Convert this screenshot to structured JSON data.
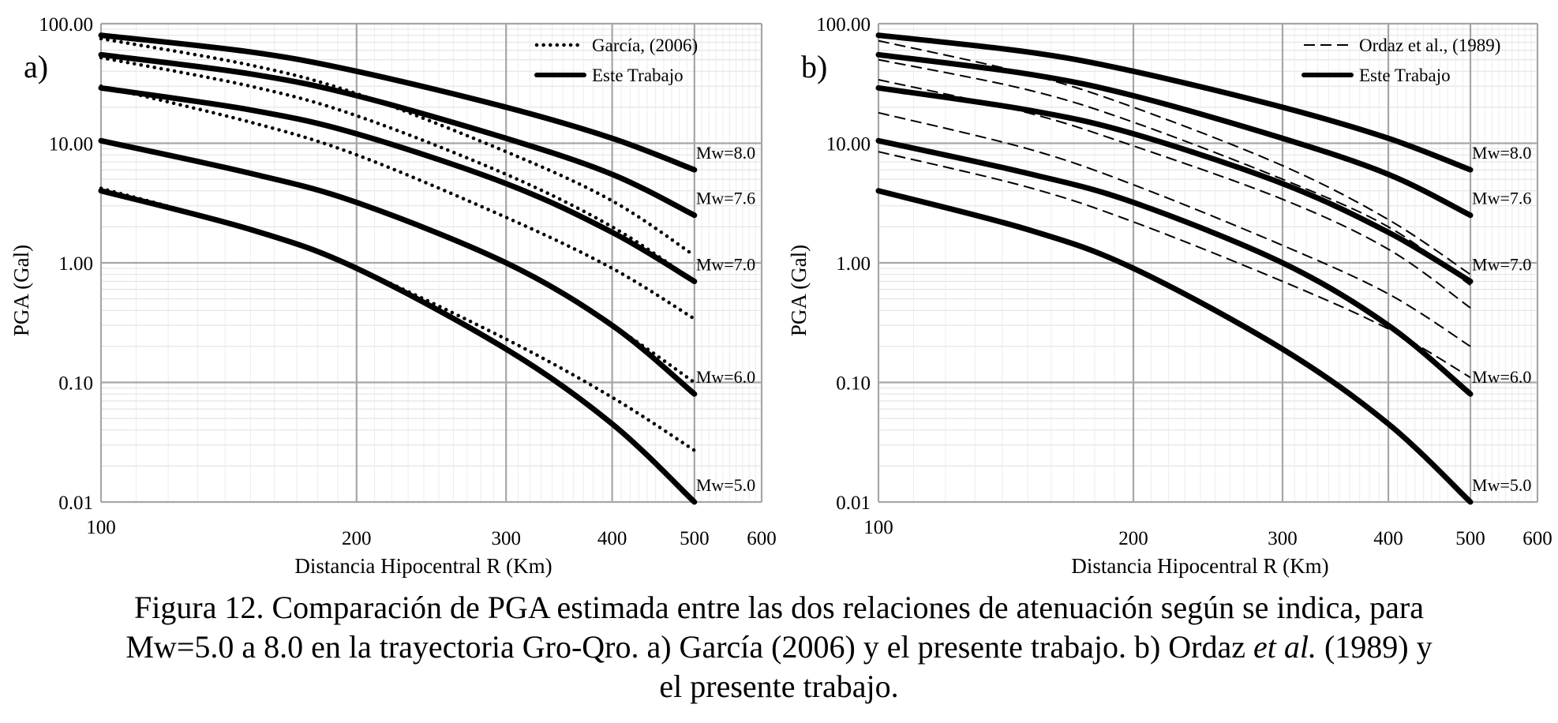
{
  "chart_data": [
    {
      "panel_label": "a)",
      "type": "line",
      "x_scale": "log",
      "y_scale": "log",
      "xlim": [
        100,
        600
      ],
      "ylim": [
        0.01,
        100
      ],
      "x_ticks": [
        100,
        200,
        300,
        400,
        500,
        600
      ],
      "x_tick_labels": [
        "100",
        "200",
        "300",
        "400",
        "500",
        "600"
      ],
      "y_ticks": [
        0.01,
        0.1,
        1,
        10,
        100
      ],
      "y_tick_labels": [
        "0.01",
        "0.10",
        "1.00",
        "10.00",
        "100.00"
      ],
      "xlabel": "Distancia Hipocentral R (Km)",
      "ylabel": "PGA (Gal)",
      "legend": {
        "position": "top-right",
        "entries": [
          {
            "label": "García, (2006)",
            "style": "dotted"
          },
          {
            "label": "Este Trabajo",
            "style": "solid-thick"
          }
        ]
      },
      "annotations": [
        "Mw=8.0",
        "Mw=7.6",
        "Mw=7.0",
        "Mw=6.0",
        "Mw=5.0"
      ],
      "series": [
        {
          "name": "Este Trabajo Mw=8.0",
          "style": "solid-thick",
          "x": [
            100,
            150,
            200,
            300,
            400,
            500
          ],
          "y": [
            80,
            58,
            40,
            20,
            11,
            6
          ]
        },
        {
          "name": "Este Trabajo Mw=7.6",
          "style": "solid-thick",
          "x": [
            100,
            150,
            200,
            300,
            400,
            500
          ],
          "y": [
            55,
            38,
            25,
            11,
            5.5,
            2.5
          ]
        },
        {
          "name": "Este Trabajo Mw=7.0",
          "style": "solid-thick",
          "x": [
            100,
            150,
            200,
            300,
            400,
            500
          ],
          "y": [
            29,
            19,
            12,
            4.6,
            1.8,
            0.7
          ]
        },
        {
          "name": "Este Trabajo Mw=6.0",
          "style": "solid-thick",
          "x": [
            100,
            150,
            200,
            300,
            400,
            500
          ],
          "y": [
            10.5,
            5.6,
            3.2,
            1.0,
            0.3,
            0.08
          ]
        },
        {
          "name": "Este Trabajo Mw=5.0",
          "style": "solid-thick",
          "x": [
            100,
            150,
            200,
            300,
            400,
            500
          ],
          "y": [
            4,
            1.9,
            0.9,
            0.19,
            0.045,
            0.01
          ]
        },
        {
          "name": "García (2006) Mw=8.0",
          "style": "dotted",
          "x": [
            100,
            150,
            200,
            300,
            400,
            500
          ],
          "y": [
            75,
            45,
            26,
            8.5,
            3.3,
            1.15
          ]
        },
        {
          "name": "García (2006) Mw=7.6",
          "style": "dotted",
          "x": [
            100,
            150,
            200,
            300,
            400,
            500
          ],
          "y": [
            52,
            30,
            17,
            5.5,
            2.0,
            0.7
          ]
        },
        {
          "name": "García (2006) Mw=7.0",
          "style": "dotted",
          "x": [
            100,
            150,
            200,
            300,
            400,
            500
          ],
          "y": [
            30,
            15,
            8.0,
            2.4,
            0.9,
            0.34
          ]
        },
        {
          "name": "García (2006) Mw=6.0",
          "style": "dotted",
          "x": [
            100,
            150,
            200,
            300,
            400,
            500
          ],
          "y": [
            10.5,
            5.6,
            3.2,
            1.0,
            0.3,
            0.1
          ]
        },
        {
          "name": "García (2006) Mw=5.0",
          "style": "dotted",
          "x": [
            100,
            150,
            200,
            300,
            400,
            500
          ],
          "y": [
            4.2,
            1.9,
            0.9,
            0.23,
            0.075,
            0.027
          ]
        }
      ]
    },
    {
      "panel_label": "b)",
      "type": "line",
      "x_scale": "log",
      "y_scale": "log",
      "xlim": [
        100,
        600
      ],
      "ylim": [
        0.01,
        100
      ],
      "x_ticks": [
        100,
        200,
        300,
        400,
        500,
        600
      ],
      "x_tick_labels": [
        "100",
        "200",
        "300",
        "400",
        "500",
        "600"
      ],
      "y_ticks": [
        0.01,
        0.1,
        1,
        10,
        100
      ],
      "y_tick_labels": [
        "0.01",
        "0.10",
        "1.00",
        "10.00",
        "100.00"
      ],
      "xlabel": "Distancia Hipocentral R (Km)",
      "ylabel": "PGA (Gal)",
      "legend": {
        "position": "top-right",
        "entries": [
          {
            "label": "Ordaz et al., (1989)",
            "style": "dashed"
          },
          {
            "label": "Este Trabajo",
            "style": "solid-thick"
          }
        ]
      },
      "annotations": [
        "Mw=8.0",
        "Mw=7.6",
        "Mw=7.0",
        "Mw=6.0",
        "Mw=5.0"
      ],
      "series": [
        {
          "name": "Este Trabajo Mw=8.0",
          "style": "solid-thick",
          "x": [
            100,
            150,
            200,
            300,
            400,
            500
          ],
          "y": [
            80,
            58,
            40,
            20,
            11,
            6
          ]
        },
        {
          "name": "Este Trabajo Mw=7.6",
          "style": "solid-thick",
          "x": [
            100,
            150,
            200,
            300,
            400,
            500
          ],
          "y": [
            55,
            38,
            25,
            11,
            5.5,
            2.5
          ]
        },
        {
          "name": "Este Trabajo Mw=7.0",
          "style": "solid-thick",
          "x": [
            100,
            150,
            200,
            300,
            400,
            500
          ],
          "y": [
            29,
            19,
            12,
            4.6,
            1.8,
            0.7
          ]
        },
        {
          "name": "Este Trabajo Mw=6.0",
          "style": "solid-thick",
          "x": [
            100,
            150,
            200,
            300,
            400,
            500
          ],
          "y": [
            10.5,
            5.6,
            3.2,
            1.0,
            0.3,
            0.08
          ]
        },
        {
          "name": "Este Trabajo Mw=5.0",
          "style": "solid-thick",
          "x": [
            100,
            150,
            200,
            300,
            400,
            500
          ],
          "y": [
            4,
            1.9,
            0.9,
            0.19,
            0.045,
            0.01
          ]
        },
        {
          "name": "Ordaz et al. (1989) Mw=8.0",
          "style": "dashed",
          "x": [
            100,
            150,
            200,
            300,
            400,
            500
          ],
          "y": [
            72,
            38,
            20,
            6.5,
            2.3,
            0.8
          ]
        },
        {
          "name": "Ordaz et al. (1989) Mw=7.6",
          "style": "dashed",
          "x": [
            100,
            150,
            200,
            300,
            400,
            500
          ],
          "y": [
            50,
            28,
            15,
            5.0,
            2.0,
            0.65
          ]
        },
        {
          "name": "Ordaz et al. (1989) Mw=7.0",
          "style": "dashed",
          "x": [
            100,
            150,
            200,
            300,
            400,
            500
          ],
          "y": [
            34,
            18,
            9.5,
            3.4,
            1.3,
            0.42
          ]
        },
        {
          "name": "Ordaz et al. (1989) Mw=6.0",
          "style": "dashed",
          "x": [
            100,
            150,
            200,
            300,
            400,
            500
          ],
          "y": [
            18,
            9,
            4.5,
            1.4,
            0.55,
            0.2
          ]
        },
        {
          "name": "Ordaz et al. (1989) Mw=5.0",
          "style": "dashed",
          "x": [
            100,
            150,
            200,
            300,
            400,
            500
          ],
          "y": [
            8.5,
            4.3,
            2.2,
            0.7,
            0.28,
            0.11
          ]
        }
      ]
    }
  ],
  "caption": {
    "line1": "Figura 12. Comparación de PGA estimada entre las dos relaciones de atenuación según se indica, para",
    "line2_a": "Mw=5.0 a 8.0 en la trayectoria Gro-Qro. a) García (2006) y el presente trabajo. b) Ordaz ",
    "line2_italic": "et al.",
    "line2_b": " (1989) y",
    "line3": "el presente trabajo."
  }
}
